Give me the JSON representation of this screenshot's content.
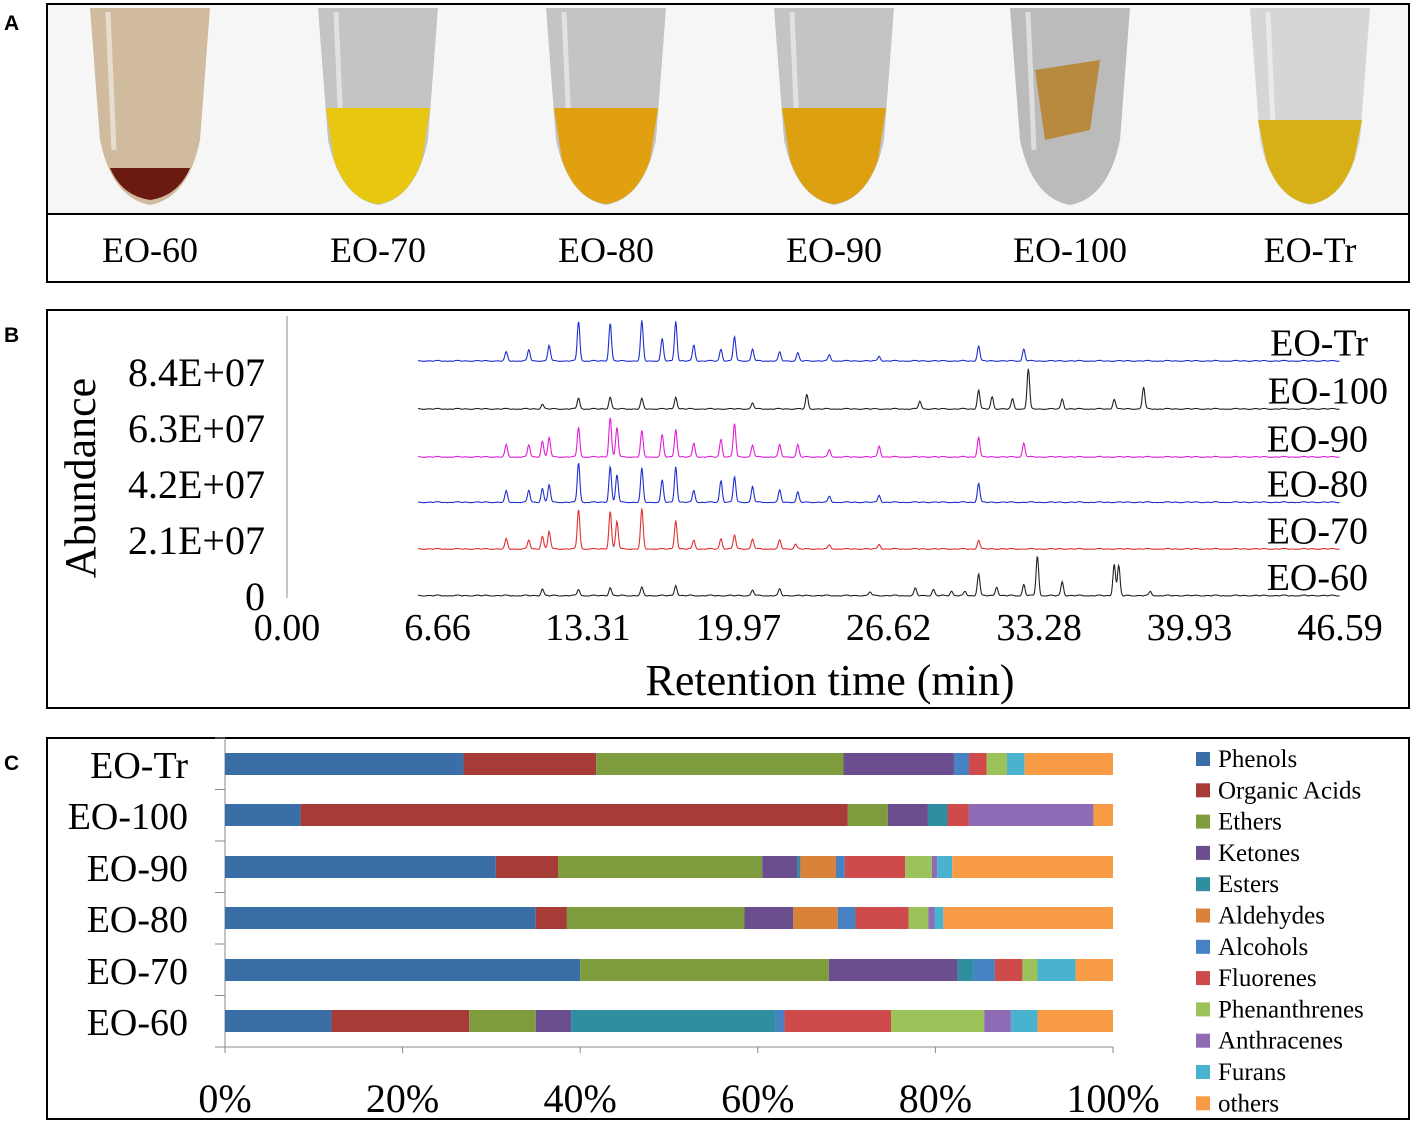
{
  "panel_labels": [
    "A",
    "B",
    "C"
  ],
  "colors": {
    "Phenols": "#3A6EA6",
    "Organic Acids": "#A63B38",
    "Ethers": "#7E9C3E",
    "Ketones": "#6B4E8E",
    "Esters": "#2F8FA0",
    "Aldehydes": "#D9823A",
    "Alcohols": "#4682C4",
    "Fluorenes": "#CF4B4B",
    "Phenanthrenes": "#9CC35A",
    "Anthracenes": "#8E6BB4",
    "Furans": "#49B2CF",
    "others": "#F89B45",
    "trace_blue": "#1f2fd0",
    "trace_black": "#222222",
    "trace_magenta": "#e020d8",
    "trace_red": "#e03030"
  },
  "photo_panel": {
    "samples": [
      {
        "label": "EO-60",
        "liquid": "#6a1a10",
        "wall": "#b08a55"
      },
      {
        "label": "EO-70",
        "liquid": "#e8c710",
        "wall": "#9a9a9a"
      },
      {
        "label": "EO-80",
        "liquid": "#e0a010",
        "wall": "#9a9a9a"
      },
      {
        "label": "EO-90",
        "liquid": "#dca010",
        "wall": "#9a9a9a"
      },
      {
        "label": "EO-100",
        "liquid": "#b88a40",
        "wall": "#8a8a8a"
      },
      {
        "label": "EO-Tr",
        "liquid": "#d7b018",
        "wall": "#bcbcbc"
      }
    ]
  },
  "chart_data": [
    {
      "type": "line",
      "title": "",
      "xlabel": "Retention time (min)",
      "ylabel": "Abundance",
      "x_ticks": [
        "0.00",
        "6.66",
        "13.31",
        "19.97",
        "26.62",
        "33.28",
        "39.93",
        "46.59"
      ],
      "x_tick_values": [
        0,
        6.66,
        13.31,
        19.97,
        26.62,
        33.28,
        39.93,
        46.59
      ],
      "y_ticks": [
        "0",
        "2.1E+07",
        "4.2E+07",
        "6.3E+07",
        "8.4E+07"
      ],
      "y_tick_values": [
        0,
        21000000,
        42000000,
        63000000,
        84000000
      ],
      "xlim": [
        0,
        46.59
      ],
      "ylim": [
        0,
        105000000
      ],
      "trace_range_min": [
        5.8,
        46.59
      ],
      "series": [
        {
          "name": "EO-60",
          "color_key": "trace_black",
          "baseline": 0,
          "peaks": [
            [
              11.3,
              0.17
            ],
            [
              12.9,
              0.16
            ],
            [
              14.3,
              0.2
            ],
            [
              15.7,
              0.2
            ],
            [
              17.2,
              0.26
            ],
            [
              20.6,
              0.14
            ],
            [
              21.8,
              0.16
            ],
            [
              25.8,
              0.1
            ],
            [
              27.8,
              0.18
            ],
            [
              28.6,
              0.15
            ],
            [
              29.4,
              0.12
            ],
            [
              30.0,
              0.1
            ],
            [
              30.6,
              0.55
            ],
            [
              31.4,
              0.22
            ],
            [
              32.6,
              0.28
            ],
            [
              33.2,
              1.0
            ],
            [
              34.3,
              0.35
            ],
            [
              36.6,
              0.8
            ],
            [
              36.8,
              0.75
            ],
            [
              38.2,
              0.1
            ]
          ]
        },
        {
          "name": "EO-70",
          "color_key": "trace_red",
          "baseline": 17500000,
          "peaks": [
            [
              9.7,
              0.25
            ],
            [
              10.7,
              0.22
            ],
            [
              11.3,
              0.32
            ],
            [
              11.6,
              0.45
            ],
            [
              12.9,
              1.0
            ],
            [
              14.3,
              0.95
            ],
            [
              14.6,
              0.7
            ],
            [
              15.7,
              1.0
            ],
            [
              17.2,
              0.72
            ],
            [
              18.0,
              0.22
            ],
            [
              19.2,
              0.26
            ],
            [
              19.8,
              0.36
            ],
            [
              20.6,
              0.25
            ],
            [
              21.8,
              0.22
            ],
            [
              22.5,
              0.12
            ],
            [
              24.0,
              0.1
            ],
            [
              26.2,
              0.12
            ],
            [
              30.6,
              0.22
            ]
          ]
        },
        {
          "name": "EO-80",
          "color_key": "trace_blue",
          "baseline": 35000000,
          "peaks": [
            [
              9.7,
              0.28
            ],
            [
              10.7,
              0.3
            ],
            [
              11.3,
              0.35
            ],
            [
              11.6,
              0.45
            ],
            [
              12.9,
              1.0
            ],
            [
              14.3,
              0.9
            ],
            [
              14.6,
              0.7
            ],
            [
              15.7,
              0.85
            ],
            [
              16.6,
              0.55
            ],
            [
              17.2,
              0.9
            ],
            [
              18.0,
              0.3
            ],
            [
              19.2,
              0.55
            ],
            [
              19.8,
              0.65
            ],
            [
              20.6,
              0.4
            ],
            [
              21.8,
              0.3
            ],
            [
              22.6,
              0.25
            ],
            [
              24.0,
              0.15
            ],
            [
              26.2,
              0.18
            ],
            [
              30.6,
              0.48
            ]
          ]
        },
        {
          "name": "EO-90",
          "color_key": "trace_magenta",
          "baseline": 52000000,
          "peaks": [
            [
              9.7,
              0.3
            ],
            [
              10.7,
              0.3
            ],
            [
              11.3,
              0.4
            ],
            [
              11.6,
              0.5
            ],
            [
              12.9,
              0.75
            ],
            [
              14.3,
              1.0
            ],
            [
              14.6,
              0.75
            ],
            [
              15.7,
              0.65
            ],
            [
              16.6,
              0.55
            ],
            [
              17.2,
              0.7
            ],
            [
              18.0,
              0.35
            ],
            [
              19.2,
              0.45
            ],
            [
              19.8,
              0.85
            ],
            [
              20.6,
              0.3
            ],
            [
              21.8,
              0.3
            ],
            [
              22.6,
              0.3
            ],
            [
              24.0,
              0.18
            ],
            [
              26.2,
              0.28
            ],
            [
              30.6,
              0.5
            ],
            [
              32.6,
              0.35
            ]
          ]
        },
        {
          "name": "EO-100",
          "color_key": "trace_black",
          "baseline": 70000000,
          "peaks": [
            [
              11.3,
              0.12
            ],
            [
              12.9,
              0.28
            ],
            [
              14.3,
              0.3
            ],
            [
              15.7,
              0.25
            ],
            [
              17.2,
              0.3
            ],
            [
              20.6,
              0.15
            ],
            [
              23.0,
              0.35
            ],
            [
              28.0,
              0.2
            ],
            [
              30.6,
              0.48
            ],
            [
              31.2,
              0.3
            ],
            [
              32.1,
              0.25
            ],
            [
              32.8,
              1.0
            ],
            [
              34.3,
              0.25
            ],
            [
              36.6,
              0.25
            ],
            [
              37.9,
              0.55
            ]
          ]
        },
        {
          "name": "EO-Tr",
          "color_key": "trace_blue",
          "baseline": 88000000,
          "peaks": [
            [
              9.7,
              0.22
            ],
            [
              10.7,
              0.28
            ],
            [
              11.6,
              0.4
            ],
            [
              12.9,
              1.0
            ],
            [
              14.3,
              0.95
            ],
            [
              15.7,
              1.0
            ],
            [
              16.6,
              0.55
            ],
            [
              17.2,
              1.0
            ],
            [
              18.0,
              0.4
            ],
            [
              19.2,
              0.3
            ],
            [
              19.8,
              0.62
            ],
            [
              20.6,
              0.3
            ],
            [
              21.8,
              0.22
            ],
            [
              22.6,
              0.2
            ],
            [
              24.0,
              0.15
            ],
            [
              26.2,
              0.12
            ],
            [
              30.6,
              0.38
            ],
            [
              32.6,
              0.3
            ]
          ]
        }
      ]
    },
    {
      "type": "bar",
      "orientation": "horizontal",
      "stacked": true,
      "normalized": true,
      "title": "",
      "xlabel": "",
      "ylabel": "",
      "xlim": [
        0,
        100
      ],
      "x_ticks": [
        "0%",
        "20%",
        "40%",
        "60%",
        "80%",
        "100%"
      ],
      "x_tick_values": [
        0,
        20,
        40,
        60,
        80,
        100
      ],
      "legend_position": "right",
      "categories": [
        "EO-Tr",
        "EO-100",
        "EO-90",
        "EO-80",
        "EO-70",
        "EO-60"
      ],
      "series": [
        {
          "name": "Phenols",
          "values": [
            27,
            8.5,
            30.5,
            35,
            40,
            12
          ]
        },
        {
          "name": "Organic Acids",
          "values": [
            15,
            61.5,
            7,
            3.5,
            0,
            15.5
          ]
        },
        {
          "name": "Ethers",
          "values": [
            28,
            4.5,
            23,
            20,
            28,
            7.5
          ]
        },
        {
          "name": "Ketones",
          "values": [
            12.5,
            4.5,
            4,
            5.5,
            14.5,
            4
          ]
        },
        {
          "name": "Esters",
          "values": [
            0,
            2.2,
            0.3,
            0,
            1.8,
            23
          ]
        },
        {
          "name": "Aldehydes",
          "values": [
            0,
            0,
            4,
            5,
            0,
            0
          ]
        },
        {
          "name": "Alcohols",
          "values": [
            1.7,
            0,
            1,
            2,
            2.4,
            1
          ]
        },
        {
          "name": "Fluorenes",
          "values": [
            2,
            2.4,
            6.8,
            6,
            3.1,
            12
          ]
        },
        {
          "name": "Phenanthrenes",
          "values": [
            2.3,
            0,
            3,
            2.2,
            1.7,
            10.5
          ]
        },
        {
          "name": "Anthracenes",
          "values": [
            0,
            14,
            0.6,
            0.7,
            0,
            3
          ]
        },
        {
          "name": "Furans",
          "values": [
            2,
            0,
            1.7,
            1,
            4.3,
            3
          ]
        },
        {
          "name": "others",
          "values": [
            10,
            2.2,
            18.1,
            19.1,
            4.2,
            8.5
          ]
        }
      ]
    }
  ]
}
